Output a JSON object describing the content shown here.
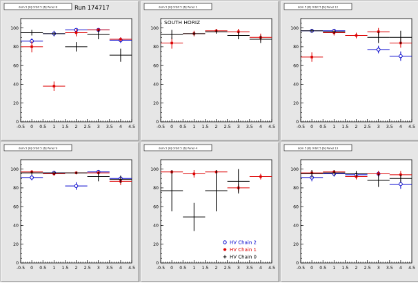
{
  "page": {
    "run_label": "Run 174717",
    "annotation": "SOUTH HORIZ"
  },
  "colors": {
    "background": "#c8c8c8",
    "frame": "#e6e6e6",
    "plot_bg": "#ffffff",
    "axis": "#000000",
    "chain2": "#0000cc",
    "chain1": "#dd0000",
    "chain0": "#000000"
  },
  "legend": {
    "entries": [
      {
        "label": "HV Chain 2",
        "color": "#0000cc",
        "marker": "circle"
      },
      {
        "label": "HV Chain 1",
        "color": "#dd0000",
        "marker": "star"
      },
      {
        "label": "HV Chain 0",
        "color": "#000000",
        "marker": "cross"
      }
    ]
  },
  "chart_data": [
    {
      "type": "scatter",
      "title": "dom 5 [6] Orbit 5 [6] Panel 8",
      "xlim": [
        -0.5,
        4.5
      ],
      "ylim": [
        0,
        110
      ],
      "x_ticks": [
        -0.5,
        0,
        0.5,
        1,
        1.5,
        2,
        2.5,
        3,
        3.5,
        4,
        4.5
      ],
      "y_ticks": [
        0,
        20,
        40,
        60,
        80,
        100
      ],
      "series": [
        {
          "name": "HV Chain 2",
          "points": [
            {
              "x": 0,
              "y": 86,
              "ex": 0.5,
              "ey": 3
            },
            {
              "x": 1,
              "y": 94,
              "ex": 0.5,
              "ey": 3
            },
            {
              "x": 2,
              "y": 98,
              "ex": 0.5,
              "ey": 1
            },
            {
              "x": 3,
              "y": 98,
              "ex": 0.5,
              "ey": 1
            },
            {
              "x": 4,
              "y": 87,
              "ex": 0.5,
              "ey": 3
            }
          ]
        },
        {
          "name": "HV Chain 1",
          "points": [
            {
              "x": 0,
              "y": 80,
              "ex": 0.5,
              "ey": 6
            },
            {
              "x": 1,
              "y": 38,
              "ex": 0.5,
              "ey": 5
            },
            {
              "x": 2,
              "y": 95,
              "ex": 0.5,
              "ey": 4
            },
            {
              "x": 3,
              "y": 98,
              "ex": 0.5,
              "ey": 1
            },
            {
              "x": 4,
              "y": 88,
              "ex": 0.5,
              "ey": 2
            }
          ]
        },
        {
          "name": "HV Chain 0",
          "points": [
            {
              "x": 0,
              "y": 95,
              "ex": 0.5,
              "ey": 3
            },
            {
              "x": 1,
              "y": 94,
              "ex": 0.5,
              "ey": 2
            },
            {
              "x": 2,
              "y": 80,
              "ex": 0.5,
              "ey": 5
            },
            {
              "x": 3,
              "y": 93,
              "ex": 0.5,
              "ey": 5
            },
            {
              "x": 4,
              "y": 71,
              "ex": 0.5,
              "ey": 7
            }
          ]
        }
      ]
    },
    {
      "type": "scatter",
      "title": "dom 5 [6] Orbit 5 [6] Panel 1",
      "xlim": [
        -0.5,
        4.5
      ],
      "ylim": [
        0,
        110
      ],
      "x_ticks": [
        -0.5,
        0,
        0.5,
        1,
        1.5,
        2,
        2.5,
        3,
        3.5,
        4,
        4.5
      ],
      "y_ticks": [
        0,
        20,
        40,
        60,
        80,
        100
      ],
      "series": [
        {
          "name": "HV Chain 2",
          "points": []
        },
        {
          "name": "HV Chain 1",
          "points": [
            {
              "x": 0,
              "y": 84,
              "ex": 0.5,
              "ey": 6
            },
            {
              "x": 1,
              "y": 94,
              "ex": 0.5,
              "ey": 3
            },
            {
              "x": 2,
              "y": 97,
              "ex": 0.5,
              "ey": 2
            },
            {
              "x": 3,
              "y": 96,
              "ex": 0.5,
              "ey": 3
            },
            {
              "x": 4,
              "y": 90,
              "ex": 0.5,
              "ey": 4
            }
          ]
        },
        {
          "name": "HV Chain 0",
          "points": [
            {
              "x": 0,
              "y": 93,
              "ex": 0.5,
              "ey": 5
            },
            {
              "x": 1,
              "y": 94,
              "ex": 0.5,
              "ey": 2
            },
            {
              "x": 2,
              "y": 96,
              "ex": 0.5,
              "ey": 2
            },
            {
              "x": 3,
              "y": 92,
              "ex": 0.5,
              "ey": 4
            },
            {
              "x": 4,
              "y": 88,
              "ex": 0.5,
              "ey": 4
            }
          ]
        }
      ]
    },
    {
      "type": "scatter",
      "title": "dom 5 [6] Orbit 5 [6] Panel 12",
      "xlim": [
        -0.5,
        4.5
      ],
      "ylim": [
        0,
        110
      ],
      "x_ticks": [
        -0.5,
        0,
        0.5,
        1,
        1.5,
        2,
        2.5,
        3,
        3.5,
        4,
        4.5
      ],
      "y_ticks": [
        0,
        20,
        40,
        60,
        80,
        100
      ],
      "series": [
        {
          "name": "HV Chain 2",
          "points": [
            {
              "x": 0,
              "y": 97,
              "ex": 0.5,
              "ey": 2
            },
            {
              "x": 1,
              "y": 97,
              "ex": 0.5,
              "ey": 2
            },
            {
              "x": 3,
              "y": 77,
              "ex": 0.5,
              "ey": 4
            },
            {
              "x": 4,
              "y": 70,
              "ex": 0.5,
              "ey": 5
            }
          ]
        },
        {
          "name": "HV Chain 1",
          "points": [
            {
              "x": 0,
              "y": 69,
              "ex": 0.5,
              "ey": 5
            },
            {
              "x": 1,
              "y": 95,
              "ex": 0.5,
              "ey": 3
            },
            {
              "x": 2,
              "y": 92,
              "ex": 0.5,
              "ey": 3
            },
            {
              "x": 3,
              "y": 96,
              "ex": 0.5,
              "ey": 4
            },
            {
              "x": 4,
              "y": 84,
              "ex": 0.5,
              "ey": 5
            }
          ]
        },
        {
          "name": "HV Chain 0",
          "points": [
            {
              "x": 0,
              "y": 97,
              "ex": 0.5,
              "ey": 2
            },
            {
              "x": 1,
              "y": 96,
              "ex": 0.5,
              "ey": 2
            },
            {
              "x": 3,
              "y": 90,
              "ex": 0.5,
              "ey": 6
            },
            {
              "x": 4,
              "y": 90,
              "ex": 0.5,
              "ey": 7
            }
          ]
        }
      ]
    },
    {
      "type": "scatter",
      "title": "dom 5 [6] Orbit 5 [6] Panel 9",
      "xlim": [
        -0.5,
        4.5
      ],
      "ylim": [
        0,
        110
      ],
      "x_ticks": [
        -0.5,
        0,
        0.5,
        1,
        1.5,
        2,
        2.5,
        3,
        3.5,
        4,
        4.5
      ],
      "y_ticks": [
        0,
        20,
        40,
        60,
        80,
        100
      ],
      "series": [
        {
          "name": "HV Chain 2",
          "points": [
            {
              "x": 0,
              "y": 91,
              "ex": 0.5,
              "ey": 3
            },
            {
              "x": 1,
              "y": 96,
              "ex": 0.5,
              "ey": 2
            },
            {
              "x": 2,
              "y": 82,
              "ex": 0.5,
              "ey": 4
            },
            {
              "x": 3,
              "y": 97,
              "ex": 0.5,
              "ey": 2
            },
            {
              "x": 4,
              "y": 90,
              "ex": 0.5,
              "ey": 3
            }
          ]
        },
        {
          "name": "HV Chain 1",
          "points": [
            {
              "x": 0,
              "y": 97,
              "ex": 0.5,
              "ey": 2
            },
            {
              "x": 1,
              "y": 95,
              "ex": 0.5,
              "ey": 2
            },
            {
              "x": 2,
              "y": 96,
              "ex": 0.5,
              "ey": 1
            },
            {
              "x": 3,
              "y": 96,
              "ex": 0.5,
              "ey": 2
            },
            {
              "x": 4,
              "y": 87,
              "ex": 0.5,
              "ey": 4
            }
          ]
        },
        {
          "name": "HV Chain 0",
          "points": [
            {
              "x": 0,
              "y": 96,
              "ex": 0.5,
              "ey": 2
            },
            {
              "x": 1,
              "y": 96,
              "ex": 0.5,
              "ey": 2
            },
            {
              "x": 2,
              "y": 96,
              "ex": 0.5,
              "ey": 1
            },
            {
              "x": 3,
              "y": 92,
              "ex": 0.5,
              "ey": 5
            },
            {
              "x": 4,
              "y": 89,
              "ex": 0.5,
              "ey": 4
            }
          ]
        }
      ]
    },
    {
      "type": "scatter",
      "title": "dom 5 [6] Orbit 5 [6] Panel 4",
      "xlim": [
        -0.5,
        4.5
      ],
      "ylim": [
        0,
        110
      ],
      "x_ticks": [
        -0.5,
        0,
        0.5,
        1,
        1.5,
        2,
        2.5,
        3,
        3.5,
        4,
        4.5
      ],
      "y_ticks": [
        0,
        20,
        40,
        60,
        80,
        100
      ],
      "series": [
        {
          "name": "HV Chain 2",
          "points": []
        },
        {
          "name": "HV Chain 1",
          "points": [
            {
              "x": 0,
              "y": 97,
              "ex": 0.5,
              "ey": 2
            },
            {
              "x": 1,
              "y": 95,
              "ex": 0.5,
              "ey": 4
            },
            {
              "x": 2,
              "y": 97,
              "ex": 0.5,
              "ey": 2
            },
            {
              "x": 3,
              "y": 80,
              "ex": 0.5,
              "ey": 4
            },
            {
              "x": 4,
              "y": 92,
              "ex": 0.5,
              "ey": 3
            }
          ]
        },
        {
          "name": "HV Chain 0",
          "points": [
            {
              "x": 0,
              "y": 77,
              "ex": 0.5,
              "ey": 22
            },
            {
              "x": 1,
              "y": 49,
              "ex": 0.5,
              "ey": 15
            },
            {
              "x": 2,
              "y": 77,
              "ex": 0.5,
              "ey": 22
            },
            {
              "x": 3,
              "y": 87,
              "ex": 0.5,
              "ey": 13
            }
          ]
        }
      ]
    },
    {
      "type": "scatter",
      "title": "dom 5 [6] Orbit 5 [6] Panel 13",
      "xlim": [
        -0.5,
        4.5
      ],
      "ylim": [
        0,
        110
      ],
      "x_ticks": [
        -0.5,
        0,
        0.5,
        1,
        1.5,
        2,
        2.5,
        3,
        3.5,
        4,
        4.5
      ],
      "y_ticks": [
        0,
        20,
        40,
        60,
        80,
        100
      ],
      "series": [
        {
          "name": "HV Chain 2",
          "points": [
            {
              "x": 0,
              "y": 91,
              "ex": 0.5,
              "ey": 4
            },
            {
              "x": 1,
              "y": 95,
              "ex": 0.5,
              "ey": 3
            },
            {
              "x": 2,
              "y": 94,
              "ex": 0.5,
              "ey": 3
            },
            {
              "x": 3,
              "y": 95,
              "ex": 0.5,
              "ey": 3
            },
            {
              "x": 4,
              "y": 84,
              "ex": 0.5,
              "ey": 5
            }
          ]
        },
        {
          "name": "HV Chain 1",
          "points": [
            {
              "x": 0,
              "y": 96,
              "ex": 0.5,
              "ey": 3
            },
            {
              "x": 1,
              "y": 97,
              "ex": 0.5,
              "ey": 2
            },
            {
              "x": 2,
              "y": 92,
              "ex": 0.5,
              "ey": 3
            },
            {
              "x": 3,
              "y": 95,
              "ex": 0.5,
              "ey": 3
            },
            {
              "x": 4,
              "y": 94,
              "ex": 0.5,
              "ey": 4
            }
          ]
        },
        {
          "name": "HV Chain 0",
          "points": [
            {
              "x": 0,
              "y": 95,
              "ex": 0.5,
              "ey": 4
            },
            {
              "x": 1,
              "y": 96,
              "ex": 0.5,
              "ey": 3
            },
            {
              "x": 2,
              "y": 95,
              "ex": 0.5,
              "ey": 3
            },
            {
              "x": 3,
              "y": 88,
              "ex": 0.5,
              "ey": 7
            },
            {
              "x": 4,
              "y": 90,
              "ex": 0.5,
              "ey": 4
            }
          ]
        }
      ]
    }
  ]
}
